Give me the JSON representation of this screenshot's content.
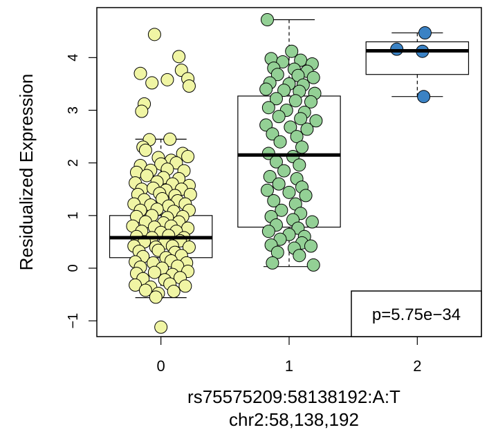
{
  "chart_data": {
    "type": "scatter",
    "subtype": "boxplot-with-jitter",
    "title": "",
    "xlabel": "rs75575209:58138192:A:T",
    "xlabel2": "chr2:58,138,192",
    "ylabel": "Residualized Expression",
    "categories": [
      "0",
      "1",
      "2"
    ],
    "xlim": [
      -0.5,
      2.5
    ],
    "ylim": [
      -1.3,
      4.95
    ],
    "yticks": [
      -1,
      0,
      1,
      2,
      3,
      4
    ],
    "ytick_labels": [
      "−1",
      "0",
      "1",
      "2",
      "3",
      "4"
    ],
    "annotation": "p=5.75e−34",
    "annotation_position": "bottom-right",
    "grid": false,
    "legend": "none",
    "colors": {
      "0": "#f0f5a4",
      "1": "#93d095",
      "2": "#3b82c4",
      "box": "#000000",
      "median": "#000000"
    },
    "boxes": [
      {
        "category": "0",
        "whisker_low": -0.56,
        "q1": 0.2,
        "median": 0.58,
        "q3": 1.0,
        "whisker_high": 2.45
      },
      {
        "category": "1",
        "whisker_low": 0.03,
        "q1": 0.78,
        "median": 2.15,
        "q3": 3.27,
        "whisker_high": 4.72
      },
      {
        "category": "2",
        "whisker_low": 3.26,
        "q1": 3.68,
        "median": 4.13,
        "q3": 4.3,
        "whisker_high": 4.47
      }
    ],
    "points": {
      "0": [
        [
          -0.05,
          4.44
        ],
        [
          0.14,
          4.02
        ],
        [
          -0.16,
          3.7
        ],
        [
          0.16,
          3.76
        ],
        [
          0.21,
          3.6
        ],
        [
          0.22,
          3.46
        ],
        [
          -0.07,
          3.52
        ],
        [
          0.05,
          3.58
        ],
        [
          -0.13,
          3.12
        ],
        [
          -0.15,
          2.98
        ],
        [
          -0.09,
          2.44
        ],
        [
          0.07,
          2.45
        ],
        [
          -0.14,
          2.3
        ],
        [
          -0.12,
          2.24
        ],
        [
          -0.02,
          2.1
        ],
        [
          0.08,
          2.05
        ],
        [
          0.17,
          2.18
        ],
        [
          0.21,
          2.12
        ],
        [
          -0.16,
          1.95
        ],
        [
          0.0,
          1.98
        ],
        [
          0.12,
          2.0
        ],
        [
          -0.19,
          1.82
        ],
        [
          -0.08,
          1.86
        ],
        [
          0.05,
          1.88
        ],
        [
          0.18,
          1.85
        ],
        [
          -0.11,
          1.76
        ],
        [
          0.02,
          1.72
        ],
        [
          0.14,
          1.7
        ],
        [
          -0.2,
          1.62
        ],
        [
          -0.03,
          1.64
        ],
        [
          0.09,
          1.6
        ],
        [
          0.22,
          1.57
        ],
        [
          -0.15,
          1.5
        ],
        [
          -0.06,
          1.52
        ],
        [
          0.04,
          1.48
        ],
        [
          0.16,
          1.5
        ],
        [
          -0.18,
          1.4
        ],
        [
          -0.01,
          1.42
        ],
        [
          0.11,
          1.38
        ],
        [
          0.23,
          1.4
        ],
        [
          -0.13,
          1.3
        ],
        [
          0.01,
          1.32
        ],
        [
          0.13,
          1.28
        ],
        [
          -0.21,
          1.22
        ],
        [
          -0.08,
          1.2
        ],
        [
          0.06,
          1.18
        ],
        [
          0.19,
          1.22
        ],
        [
          -0.16,
          1.1
        ],
        [
          -0.03,
          1.12
        ],
        [
          0.1,
          1.08
        ],
        [
          0.22,
          1.1
        ],
        [
          -0.19,
          0.98
        ],
        [
          -0.07,
          1.0
        ],
        [
          0.05,
          0.96
        ],
        [
          0.17,
          0.98
        ],
        [
          -0.12,
          0.88
        ],
        [
          0.02,
          0.86
        ],
        [
          0.14,
          0.88
        ],
        [
          -0.22,
          0.8
        ],
        [
          -0.05,
          0.78
        ],
        [
          0.08,
          0.8
        ],
        [
          0.21,
          0.76
        ],
        [
          -0.15,
          0.7
        ],
        [
          0.0,
          0.68
        ],
        [
          0.12,
          0.7
        ],
        [
          -0.19,
          0.6
        ],
        [
          -0.07,
          0.58
        ],
        [
          0.06,
          0.62
        ],
        [
          0.18,
          0.58
        ],
        [
          -0.13,
          0.5
        ],
        [
          0.03,
          0.48
        ],
        [
          0.15,
          0.52
        ],
        [
          -0.21,
          0.42
        ],
        [
          -0.04,
          0.4
        ],
        [
          0.09,
          0.42
        ],
        [
          0.22,
          0.4
        ],
        [
          -0.17,
          0.32
        ],
        [
          -0.02,
          0.34
        ],
        [
          0.11,
          0.3
        ],
        [
          -0.14,
          0.22
        ],
        [
          0.04,
          0.2
        ],
        [
          0.16,
          0.24
        ],
        [
          -0.2,
          0.12
        ],
        [
          -0.06,
          0.1
        ],
        [
          0.08,
          0.14
        ],
        [
          0.2,
          0.1
        ],
        [
          -0.16,
          0.02
        ],
        [
          0.01,
          0.0
        ],
        [
          0.13,
          0.04
        ],
        [
          -0.19,
          -0.1
        ],
        [
          -0.05,
          -0.08
        ],
        [
          0.09,
          -0.12
        ],
        [
          0.21,
          -0.06
        ],
        [
          -0.14,
          -0.2
        ],
        [
          0.03,
          -0.22
        ],
        [
          0.15,
          -0.18
        ],
        [
          -0.2,
          -0.32
        ],
        [
          -0.08,
          -0.36
        ],
        [
          0.07,
          -0.3
        ],
        [
          0.19,
          -0.34
        ],
        [
          -0.12,
          -0.42
        ],
        [
          -0.02,
          -0.48
        ],
        [
          0.1,
          -0.44
        ],
        [
          -0.04,
          -0.55
        ],
        [
          0.0,
          -1.12
        ]
      ],
      "1": [
        [
          -0.17,
          4.72
        ],
        [
          0.02,
          4.12
        ],
        [
          -0.14,
          3.98
        ],
        [
          -0.05,
          3.92
        ],
        [
          0.09,
          3.95
        ],
        [
          0.18,
          3.88
        ],
        [
          -0.12,
          3.8
        ],
        [
          0.04,
          3.78
        ],
        [
          0.14,
          3.74
        ],
        [
          -0.09,
          3.68
        ],
        [
          0.07,
          3.66
        ],
        [
          0.19,
          3.62
        ],
        [
          -0.15,
          3.52
        ],
        [
          0.0,
          3.5
        ],
        [
          0.11,
          3.48
        ],
        [
          -0.18,
          3.4
        ],
        [
          -0.04,
          3.38
        ],
        [
          0.08,
          3.36
        ],
        [
          0.2,
          3.32
        ],
        [
          -0.1,
          3.22
        ],
        [
          0.05,
          3.18
        ],
        [
          0.17,
          3.16
        ],
        [
          -0.16,
          3.05
        ],
        [
          -0.02,
          3.0
        ],
        [
          0.12,
          2.96
        ],
        [
          -0.08,
          2.88
        ],
        [
          0.09,
          2.84
        ],
        [
          0.21,
          2.8
        ],
        [
          -0.18,
          2.72
        ],
        [
          0.01,
          2.68
        ],
        [
          0.14,
          2.64
        ],
        [
          -0.13,
          2.55
        ],
        [
          0.06,
          2.5
        ],
        [
          -0.07,
          2.4
        ],
        [
          0.1,
          2.3
        ],
        [
          -0.16,
          2.18
        ],
        [
          0.03,
          2.12
        ],
        [
          -0.1,
          2.02
        ],
        [
          0.08,
          1.96
        ],
        [
          -0.04,
          1.85
        ],
        [
          -0.15,
          1.74
        ],
        [
          0.06,
          1.7
        ],
        [
          -0.08,
          1.6
        ],
        [
          0.1,
          1.54
        ],
        [
          -0.17,
          1.48
        ],
        [
          0.0,
          1.44
        ],
        [
          0.13,
          1.38
        ],
        [
          -0.12,
          1.28
        ],
        [
          0.05,
          1.22
        ],
        [
          -0.06,
          1.1
        ],
        [
          0.09,
          1.04
        ],
        [
          -0.14,
          0.98
        ],
        [
          0.03,
          0.92
        ],
        [
          0.18,
          0.88
        ],
        [
          -0.1,
          0.82
        ],
        [
          0.07,
          0.76
        ],
        [
          -0.16,
          0.7
        ],
        [
          0.0,
          0.64
        ],
        [
          0.12,
          0.6
        ],
        [
          -0.07,
          0.55
        ],
        [
          0.1,
          0.48
        ],
        [
          -0.14,
          0.44
        ],
        [
          0.04,
          0.38
        ],
        [
          0.17,
          0.42
        ],
        [
          -0.09,
          0.3
        ],
        [
          0.08,
          0.24
        ],
        [
          -0.13,
          0.1
        ],
        [
          0.19,
          0.06
        ]
      ],
      "2": [
        [
          0.06,
          4.47
        ],
        [
          -0.16,
          4.16
        ],
        [
          0.04,
          4.12
        ],
        [
          0.05,
          3.26
        ]
      ]
    }
  }
}
